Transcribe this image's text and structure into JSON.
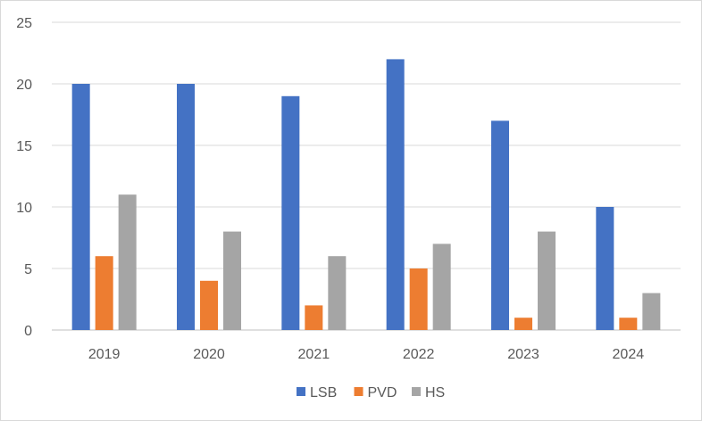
{
  "chart_data": {
    "type": "bar",
    "title": "",
    "xlabel": "",
    "ylabel": "",
    "categories": [
      "2019",
      "2020",
      "2021",
      "2022",
      "2023",
      "2024"
    ],
    "series": [
      {
        "name": "LSB",
        "color": "#4472C4",
        "values": [
          20,
          20,
          19,
          22,
          17,
          10
        ]
      },
      {
        "name": "PVD",
        "color": "#ED7D31",
        "values": [
          6,
          4,
          2,
          5,
          1,
          1
        ]
      },
      {
        "name": "HS",
        "color": "#A5A5A5",
        "values": [
          11,
          8,
          6,
          7,
          8,
          3
        ]
      }
    ],
    "ylim": [
      0,
      25
    ],
    "yticks": [
      "0",
      "5",
      "10",
      "15",
      "20",
      "25"
    ],
    "grid": true,
    "legend_position": "bottom"
  }
}
